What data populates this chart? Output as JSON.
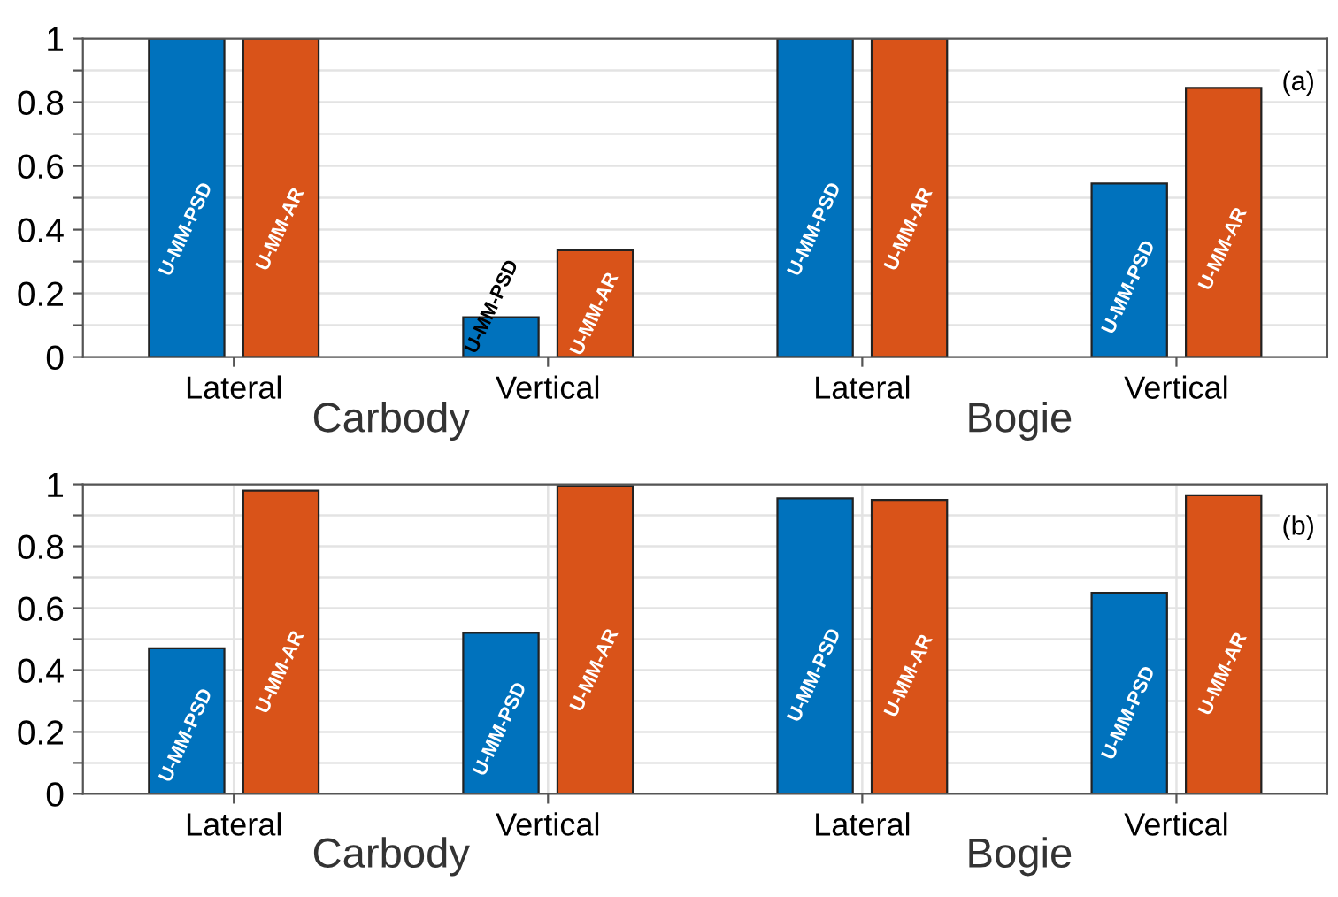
{
  "chart_data": [
    {
      "type": "bar",
      "categories": [
        "Lateral",
        "Vertical",
        "Lateral",
        "Vertical"
      ],
      "series": [
        {
          "name": "U-MM-PSD",
          "color": "#0072bd",
          "values": [
            1,
            0.125,
            1,
            0.545
          ]
        },
        {
          "name": "U-MM-AR",
          "color": "#d95319",
          "values": [
            1,
            0.335,
            1,
            0.845
          ]
        }
      ],
      "ylim": [
        0,
        1
      ],
      "yticks": [
        0,
        {
          "value": 0.1,
          "label": null
        },
        0.2,
        {
          "value": 0.3,
          "label": null
        },
        0.4,
        {
          "value": 0.5,
          "label": null
        },
        0.6,
        {
          "value": 0.7,
          "label": null
        },
        0.8,
        {
          "value": 0.9,
          "label": null
        },
        1
      ],
      "grid": "y",
      "legend": false,
      "annotations": [
        "Carbody",
        "Bogie",
        "(a)"
      ]
    },
    {
      "type": "bar",
      "categories": [
        "Lateral",
        "Vertical",
        "Lateral",
        "Vertical"
      ],
      "series": [
        {
          "name": "U-MM-PSD",
          "color": "#0072bd",
          "values": [
            0.47,
            0.52,
            0.955,
            0.65
          ]
        },
        {
          "name": "U-MM-AR",
          "color": "#d95319",
          "values": [
            0.98,
            0.995,
            0.95,
            0.965
          ]
        }
      ],
      "ylim": [
        0,
        1
      ],
      "yticks": [
        0,
        {
          "value": 0.1,
          "label": null
        },
        0.2,
        {
          "value": 0.3,
          "label": null
        },
        0.4,
        {
          "value": 0.5,
          "label": null
        },
        0.6,
        {
          "value": 0.7,
          "label": null
        },
        0.8,
        {
          "value": 0.9,
          "label": null
        },
        1
      ],
      "grid": true,
      "legend": false,
      "annotations": [
        "Carbody",
        "Bogie",
        "(b)"
      ]
    }
  ]
}
